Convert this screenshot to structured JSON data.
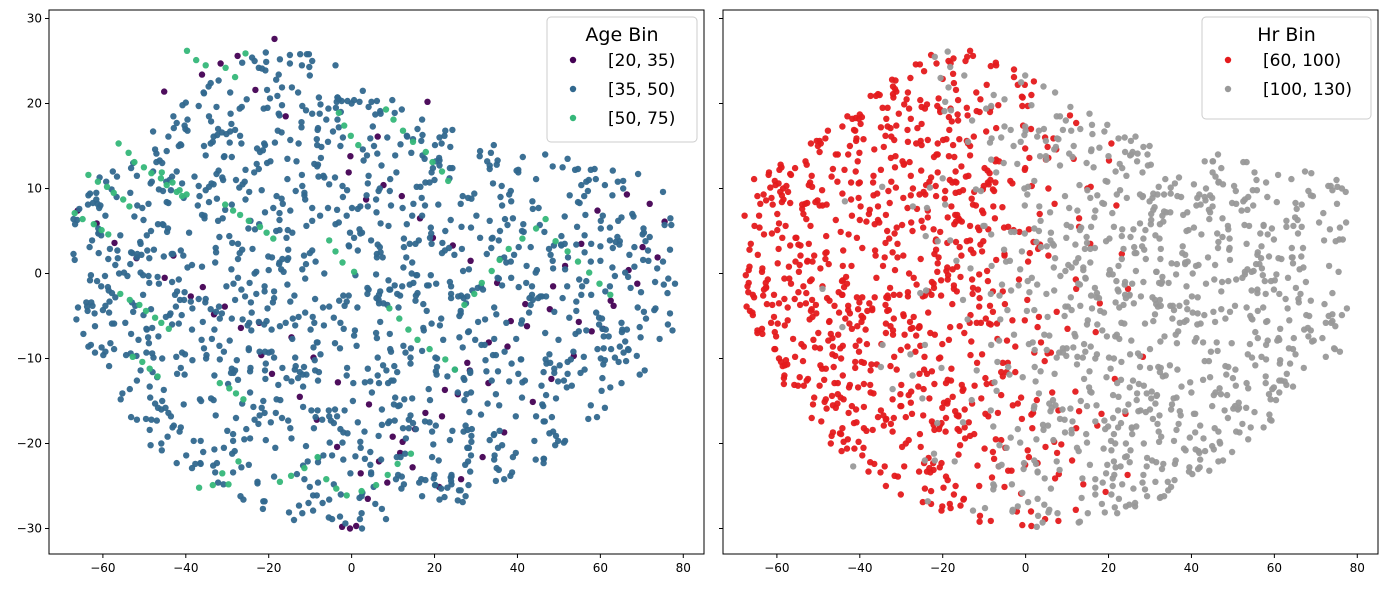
{
  "figure": {
    "layout": "1x2",
    "sharey": true
  },
  "chart_data": [
    {
      "type": "scatter",
      "title": "",
      "xlabel": "",
      "ylabel": "",
      "xlim": [
        -73,
        85
      ],
      "ylim": [
        -33,
        31
      ],
      "xticks": [
        -60,
        -40,
        -20,
        0,
        20,
        40,
        60,
        80
      ],
      "xtick_labels": [
        "−60",
        "−40",
        "−20",
        "0",
        "20",
        "40",
        "60",
        "80"
      ],
      "yticks": [
        -30,
        -20,
        -10,
        0,
        10,
        20,
        30
      ],
      "ytick_labels": [
        "−30",
        "−20",
        "−10",
        "0",
        "10",
        "20",
        "30"
      ],
      "legend": {
        "title": "Age Bin",
        "position": "upper right",
        "entries": [
          {
            "label": "[20, 35)",
            "color": "#440154"
          },
          {
            "label": "[35, 50)",
            "color": "#31688e"
          },
          {
            "label": "[50, 75)",
            "color": "#35b779"
          }
        ]
      },
      "series": [
        {
          "name": "[20, 35)",
          "color": "#440154",
          "x": [
            -45.2,
            -31.6,
            -27.5,
            -18.6,
            -36.1,
            -23.2,
            18.3,
            -15.9,
            6.3,
            -0.3,
            -0.7,
            3.5,
            7.7,
            12.1,
            16.5,
            19.6,
            24.4,
            28.7,
            35.1,
            41.9,
            47.8,
            54.8,
            60.7,
            63.2,
            68.9,
            73.8,
            75.5,
            71.9,
            66.4,
            59.3,
            55.4,
            51.5,
            48.6,
            42.3,
            37.6,
            33.0,
            28.5,
            25.6,
            21.8,
            15.3,
            11.7,
            8.6,
            2.2,
            -3.5,
            -8.4,
            -12.5,
            -19.2,
            -21.8,
            -26.7,
            -33.2,
            -38.8,
            -45.1,
            -51.9,
            -57.2,
            -61.5,
            -66.1,
            -43.0,
            -35.9,
            -30.6,
            -22.3,
            -14.5,
            -9.2,
            -3.3,
            4.2,
            9.9,
            14.7,
            21.1,
            26.4,
            31.6,
            36.8,
            43.7,
            48.2,
            53.6,
            57.9,
            62.5,
            66.8,
            70.2,
            -2.3,
            -0.4,
            1.1,
            3.9,
            6.6,
            12.3,
            17.8,
            22.5,
            27.9,
            33.1,
            38.4
          ],
          "y": [
            21.4,
            24.7,
            25.6,
            27.6,
            23.4,
            21.6,
            20.2,
            18.5,
            16.1,
            13.8,
            11.9,
            8.7,
            10.4,
            9.1,
            6.5,
            4.2,
            3.3,
            1.5,
            -1.1,
            -3.6,
            -4.2,
            -5.7,
            -6.5,
            -3.8,
            -1.2,
            1.9,
            6.1,
            8.2,
            9.3,
            7.4,
            3.5,
            0.9,
            -1.5,
            -6.2,
            -8.6,
            -12.9,
            -11.4,
            -14.2,
            -16.8,
            -18.3,
            -21.1,
            -24.6,
            -23.5,
            -20.4,
            -17.2,
            -14.5,
            -11.8,
            -9.6,
            -6.4,
            -4.8,
            -2.7,
            -0.5,
            1.8,
            3.6,
            5.9,
            7.4,
            2.1,
            -1.6,
            -3.9,
            -5.8,
            -7.5,
            -9.9,
            -12.8,
            -15.4,
            -19.2,
            -22.8,
            -25.1,
            -24.2,
            -21.6,
            -18.7,
            -15.1,
            -12.4,
            -9.7,
            -6.8,
            -3.2,
            0.4,
            3.1,
            -29.8,
            -30.0,
            -29.7,
            -26.5,
            -22.1,
            -19.8,
            -16.4,
            -13.7,
            -10.5,
            -8.1,
            -5.6
          ]
        },
        {
          "name": "[35, 50)",
          "color": "#31688e",
          "generated": true,
          "count": 1300
        },
        {
          "name": "[50, 75)",
          "color": "#35b779",
          "x": [
            -39.7,
            -37.5,
            -35.2,
            -25.6,
            -30.4,
            -28.1,
            -56.2,
            -53.8,
            -52.4,
            -50.1,
            -48.3,
            -46.0,
            -44.6,
            -42.2,
            -40.9,
            -63.5,
            -61.2,
            -59.0,
            -57.4,
            -55.1,
            -53.6,
            -66.8,
            -64.9,
            -62.2,
            -60.3,
            -58.7,
            -45.8,
            -43.2,
            -41.5,
            -39.8,
            -30.5,
            -28.6,
            -26.9,
            -24.8,
            -22.1,
            -20.5,
            -18.9,
            -55.8,
            -53.5,
            -51.2,
            -49.6,
            -47.4,
            -45.9,
            -44.1,
            -52.8,
            -50.5,
            -48.7,
            -46.8,
            -31.8,
            -29.5,
            -27.9,
            -26.1,
            -3.1,
            -1.8,
            -0.2,
            1.6,
            8.3,
            10.1,
            12.4,
            14.8,
            17.9,
            19.5,
            21.8,
            23.3,
            -5.4,
            -3.9,
            -2.2,
            0.6,
            9.1,
            11.5,
            13.7,
            15.9,
            18.8,
            22.6,
            24.9,
            27.2,
            29.6,
            31.4,
            33.8,
            35.7,
            37.9,
            41.2,
            44.5,
            46.8,
            49.2,
            52.1,
            54.6,
            57.3,
            59.8,
            62.4,
            -8.2,
            -11.4,
            -14.6,
            -17.3,
            -33.5,
            -36.8,
            -29.7,
            -31.2,
            -27.3,
            -6.1,
            -3.7,
            -1.2,
            2.4,
            5.9,
            8.7,
            11.1,
            14.3
          ],
          "y": [
            26.2,
            25.1,
            24.5,
            25.9,
            24.2,
            23.1,
            15.3,
            14.2,
            13.1,
            12.5,
            11.8,
            11.2,
            10.4,
            9.6,
            9.1,
            11.6,
            10.8,
            10.2,
            9.5,
            8.7,
            7.9,
            7.1,
            6.4,
            5.8,
            5.1,
            4.6,
            11.9,
            10.7,
            9.8,
            9.3,
            8.1,
            7.4,
            6.9,
            6.2,
            5.5,
            4.8,
            4.1,
            -2.4,
            -3.1,
            -3.7,
            -4.4,
            -5.2,
            -5.8,
            -6.5,
            -9.8,
            -10.4,
            -11.2,
            -12.1,
            -12.9,
            -13.5,
            -14.1,
            -14.8,
            18.9,
            17.4,
            16.2,
            15.1,
            19.3,
            18.1,
            16.8,
            15.5,
            14.3,
            13.1,
            12.0,
            10.9,
            3.9,
            2.6,
            1.3,
            0.2,
            -4.1,
            -5.3,
            -6.6,
            -7.8,
            -8.9,
            -10.1,
            -11.3,
            -3.7,
            -2.4,
            -1.1,
            0.3,
            1.6,
            2.9,
            4.1,
            5.3,
            6.4,
            3.8,
            2.6,
            1.4,
            0.1,
            -1.2,
            -2.5,
            -21.6,
            -22.9,
            -23.8,
            -24.5,
            -24.9,
            -25.2,
            -24.8,
            -23.5,
            -22.1,
            -24.2,
            -25.3,
            -26.1,
            -25.6,
            -24.9,
            -23.7,
            -22.4,
            -21.2
          ]
        }
      ]
    },
    {
      "type": "scatter",
      "title": "",
      "xlabel": "",
      "ylabel": "",
      "xlim": [
        -73,
        85
      ],
      "ylim": [
        -33,
        31
      ],
      "xticks": [
        -60,
        -40,
        -20,
        0,
        20,
        40,
        60,
        80
      ],
      "xtick_labels": [
        "−60",
        "−40",
        "−20",
        "0",
        "20",
        "40",
        "60",
        "80"
      ],
      "yticks": [
        -30,
        -20,
        -10,
        0,
        10,
        20,
        30
      ],
      "ytick_labels": [
        "",
        "",
        "",
        "",
        "",
        "",
        ""
      ],
      "legend": {
        "title": "Hr Bin",
        "position": "upper right",
        "entries": [
          {
            "label": "[60, 100)",
            "color": "#e41a1c"
          },
          {
            "label": "[100, 130)",
            "color": "#999999"
          }
        ]
      },
      "series": [
        {
          "name": "[60, 100)",
          "color": "#e41a1c",
          "generated": true,
          "count": 900
        },
        {
          "name": "[100, 130)",
          "color": "#999999",
          "generated": true,
          "count": 900
        }
      ]
    }
  ]
}
